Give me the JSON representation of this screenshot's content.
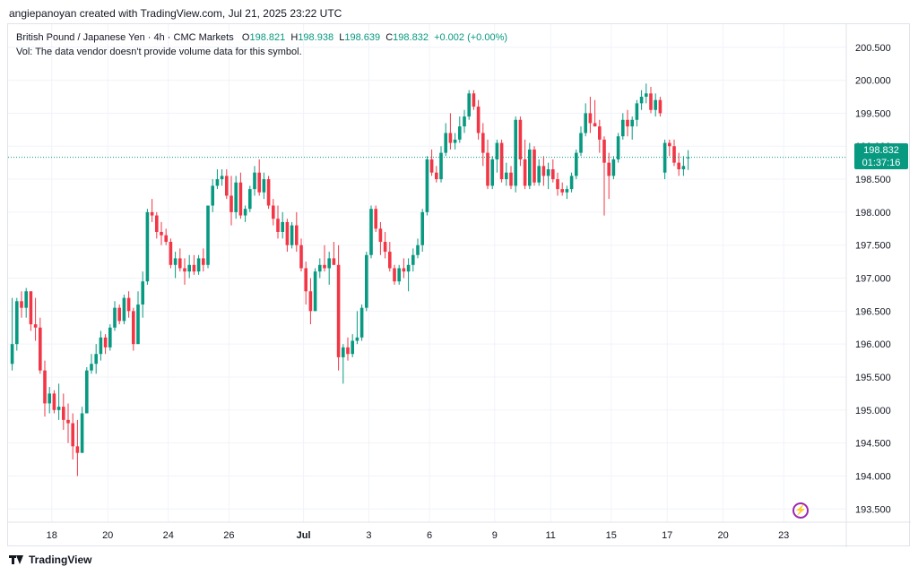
{
  "header": {
    "attribution": "angiepanoyan created with TradingView.com, Jul 21, 2025 23:22 UTC"
  },
  "legend": {
    "symbol": "British Pound / Japanese Yen · 4h · CMC Markets",
    "open_label": "O",
    "open": "198.821",
    "high_label": "H",
    "high": "198.938",
    "low_label": "L",
    "low": "198.639",
    "close_label": "C",
    "close": "198.832",
    "change": "+0.002 (+0.00%)",
    "volume_note": "Vol: The data vendor doesn't provide volume data for this symbol."
  },
  "price_tag": {
    "price": "198.832",
    "countdown": "01:37:16"
  },
  "footer": {
    "brand": "TradingView"
  },
  "icons": {
    "alert": "lightning-bolt-icon",
    "logo": "tradingview-logo-icon"
  },
  "colors": {
    "up": "#089981",
    "down": "#f23645",
    "last_price_line": "#089981",
    "alert": "#9c27b0"
  },
  "chart_data": {
    "type": "candlestick",
    "y_axis_labels": [
      "200.500",
      "200.000",
      "199.500",
      "199.000",
      "198.500",
      "198.000",
      "197.500",
      "197.000",
      "196.500",
      "196.000",
      "195.500",
      "195.000",
      "194.500",
      "194.000",
      "193.500"
    ],
    "ylim": [
      193.3,
      200.85
    ],
    "x_axis_labels": [
      "18",
      "20",
      "24",
      "26",
      "Jul",
      "3",
      "6",
      "9",
      "11",
      "15",
      "17",
      "20",
      "23"
    ],
    "x_label_slots": [
      9,
      21,
      34,
      47,
      63,
      77,
      90,
      104,
      116,
      129,
      141,
      153,
      166
    ],
    "last_price": 198.832,
    "grid": true,
    "candles": [
      {
        "o": 195.7,
        "h": 196.7,
        "l": 195.6,
        "c": 196.0
      },
      {
        "o": 196.0,
        "h": 196.7,
        "l": 195.9,
        "c": 196.65
      },
      {
        "o": 196.65,
        "h": 196.8,
        "l": 196.4,
        "c": 196.55
      },
      {
        "o": 196.55,
        "h": 196.85,
        "l": 196.4,
        "c": 196.8
      },
      {
        "o": 196.8,
        "h": 196.8,
        "l": 196.2,
        "c": 196.3
      },
      {
        "o": 196.3,
        "h": 196.7,
        "l": 196.05,
        "c": 196.25
      },
      {
        "o": 196.25,
        "h": 196.4,
        "l": 195.55,
        "c": 195.6
      },
      {
        "o": 195.6,
        "h": 195.75,
        "l": 194.9,
        "c": 195.1
      },
      {
        "o": 195.1,
        "h": 195.35,
        "l": 194.95,
        "c": 195.25
      },
      {
        "o": 195.25,
        "h": 195.3,
        "l": 194.95,
        "c": 195.0
      },
      {
        "o": 195.0,
        "h": 195.4,
        "l": 194.85,
        "c": 195.05
      },
      {
        "o": 195.05,
        "h": 195.25,
        "l": 194.7,
        "c": 194.85
      },
      {
        "o": 194.85,
        "h": 195.1,
        "l": 194.5,
        "c": 194.8
      },
      {
        "o": 194.8,
        "h": 194.95,
        "l": 194.25,
        "c": 194.45
      },
      {
        "o": 194.45,
        "h": 194.85,
        "l": 194.0,
        "c": 194.35
      },
      {
        "o": 194.35,
        "h": 195.05,
        "l": 194.35,
        "c": 194.95
      },
      {
        "o": 194.95,
        "h": 195.65,
        "l": 194.95,
        "c": 195.6
      },
      {
        "o": 195.6,
        "h": 195.85,
        "l": 195.55,
        "c": 195.7
      },
      {
        "o": 195.7,
        "h": 196.0,
        "l": 195.55,
        "c": 195.85
      },
      {
        "o": 195.85,
        "h": 196.2,
        "l": 195.75,
        "c": 196.1
      },
      {
        "o": 196.1,
        "h": 196.15,
        "l": 195.85,
        "c": 195.95
      },
      {
        "o": 195.95,
        "h": 196.3,
        "l": 195.9,
        "c": 196.25
      },
      {
        "o": 196.25,
        "h": 196.65,
        "l": 196.2,
        "c": 196.55
      },
      {
        "o": 196.55,
        "h": 196.6,
        "l": 196.3,
        "c": 196.35
      },
      {
        "o": 196.35,
        "h": 196.75,
        "l": 196.3,
        "c": 196.7
      },
      {
        "o": 196.7,
        "h": 196.8,
        "l": 196.4,
        "c": 196.5
      },
      {
        "o": 196.5,
        "h": 196.55,
        "l": 195.9,
        "c": 196.0
      },
      {
        "o": 196.0,
        "h": 196.8,
        "l": 196.0,
        "c": 196.6
      },
      {
        "o": 196.6,
        "h": 197.1,
        "l": 196.4,
        "c": 196.95
      },
      {
        "o": 196.95,
        "h": 198.05,
        "l": 196.9,
        "c": 198.0
      },
      {
        "o": 198.0,
        "h": 198.2,
        "l": 197.85,
        "c": 197.95
      },
      {
        "o": 197.95,
        "h": 198.0,
        "l": 197.6,
        "c": 197.7
      },
      {
        "o": 197.7,
        "h": 197.85,
        "l": 197.5,
        "c": 197.65
      },
      {
        "o": 197.65,
        "h": 197.75,
        "l": 197.5,
        "c": 197.55
      },
      {
        "o": 197.55,
        "h": 197.6,
        "l": 197.15,
        "c": 197.2
      },
      {
        "o": 197.2,
        "h": 197.4,
        "l": 197.0,
        "c": 197.3
      },
      {
        "o": 197.3,
        "h": 197.45,
        "l": 197.1,
        "c": 197.15
      },
      {
        "o": 197.15,
        "h": 197.3,
        "l": 196.9,
        "c": 197.1
      },
      {
        "o": 197.1,
        "h": 197.35,
        "l": 197.0,
        "c": 197.2
      },
      {
        "o": 197.2,
        "h": 197.35,
        "l": 197.05,
        "c": 197.1
      },
      {
        "o": 197.1,
        "h": 197.35,
        "l": 197.05,
        "c": 197.3
      },
      {
        "o": 197.3,
        "h": 197.45,
        "l": 197.1,
        "c": 197.2
      },
      {
        "o": 197.2,
        "h": 198.1,
        "l": 197.15,
        "c": 198.1
      },
      {
        "o": 198.1,
        "h": 198.5,
        "l": 198.0,
        "c": 198.4
      },
      {
        "o": 198.4,
        "h": 198.65,
        "l": 198.35,
        "c": 198.5
      },
      {
        "o": 198.5,
        "h": 198.65,
        "l": 198.4,
        "c": 198.55
      },
      {
        "o": 198.55,
        "h": 198.65,
        "l": 198.2,
        "c": 198.25
      },
      {
        "o": 198.25,
        "h": 198.55,
        "l": 197.8,
        "c": 198.0
      },
      {
        "o": 198.0,
        "h": 198.55,
        "l": 197.9,
        "c": 198.45
      },
      {
        "o": 198.45,
        "h": 198.6,
        "l": 197.9,
        "c": 197.95
      },
      {
        "o": 197.95,
        "h": 198.1,
        "l": 197.85,
        "c": 198.05
      },
      {
        "o": 198.05,
        "h": 198.4,
        "l": 198.0,
        "c": 198.35
      },
      {
        "o": 198.35,
        "h": 198.7,
        "l": 198.25,
        "c": 198.6
      },
      {
        "o": 198.6,
        "h": 198.8,
        "l": 198.25,
        "c": 198.3
      },
      {
        "o": 198.3,
        "h": 198.6,
        "l": 198.2,
        "c": 198.5
      },
      {
        "o": 198.5,
        "h": 198.55,
        "l": 198.05,
        "c": 198.1
      },
      {
        "o": 198.1,
        "h": 198.2,
        "l": 197.8,
        "c": 197.9
      },
      {
        "o": 197.9,
        "h": 198.1,
        "l": 197.6,
        "c": 197.7
      },
      {
        "o": 197.7,
        "h": 198.0,
        "l": 197.6,
        "c": 197.85
      },
      {
        "o": 197.85,
        "h": 197.9,
        "l": 197.4,
        "c": 197.5
      },
      {
        "o": 197.5,
        "h": 197.85,
        "l": 197.45,
        "c": 197.8
      },
      {
        "o": 197.8,
        "h": 198.0,
        "l": 197.4,
        "c": 197.5
      },
      {
        "o": 197.5,
        "h": 197.6,
        "l": 197.1,
        "c": 197.15
      },
      {
        "o": 197.15,
        "h": 197.25,
        "l": 196.6,
        "c": 196.8
      },
      {
        "o": 196.8,
        "h": 197.0,
        "l": 196.3,
        "c": 196.5
      },
      {
        "o": 196.5,
        "h": 197.15,
        "l": 196.5,
        "c": 197.1
      },
      {
        "o": 197.1,
        "h": 197.3,
        "l": 197.0,
        "c": 197.2
      },
      {
        "o": 197.2,
        "h": 197.5,
        "l": 197.1,
        "c": 197.15
      },
      {
        "o": 197.15,
        "h": 197.4,
        "l": 196.9,
        "c": 197.3
      },
      {
        "o": 197.3,
        "h": 197.55,
        "l": 197.2,
        "c": 197.2
      },
      {
        "o": 197.2,
        "h": 197.5,
        "l": 195.6,
        "c": 195.8
      },
      {
        "o": 195.8,
        "h": 196.0,
        "l": 195.4,
        "c": 195.95
      },
      {
        "o": 195.95,
        "h": 196.1,
        "l": 195.75,
        "c": 195.85
      },
      {
        "o": 195.85,
        "h": 196.15,
        "l": 195.8,
        "c": 196.05
      },
      {
        "o": 196.05,
        "h": 196.5,
        "l": 196.0,
        "c": 196.1
      },
      {
        "o": 196.1,
        "h": 196.6,
        "l": 196.05,
        "c": 196.55
      },
      {
        "o": 196.55,
        "h": 197.4,
        "l": 196.5,
        "c": 197.35
      },
      {
        "o": 197.35,
        "h": 198.1,
        "l": 197.3,
        "c": 198.05
      },
      {
        "o": 198.05,
        "h": 198.1,
        "l": 197.7,
        "c": 197.75
      },
      {
        "o": 197.75,
        "h": 197.85,
        "l": 197.35,
        "c": 197.55
      },
      {
        "o": 197.55,
        "h": 197.7,
        "l": 197.3,
        "c": 197.4
      },
      {
        "o": 197.4,
        "h": 197.55,
        "l": 197.1,
        "c": 197.15
      },
      {
        "o": 197.15,
        "h": 197.2,
        "l": 196.9,
        "c": 196.95
      },
      {
        "o": 196.95,
        "h": 197.2,
        "l": 196.9,
        "c": 197.15
      },
      {
        "o": 197.15,
        "h": 197.3,
        "l": 197.0,
        "c": 197.1
      },
      {
        "o": 197.1,
        "h": 197.3,
        "l": 196.8,
        "c": 197.2
      },
      {
        "o": 197.2,
        "h": 197.45,
        "l": 197.1,
        "c": 197.35
      },
      {
        "o": 197.35,
        "h": 197.6,
        "l": 197.3,
        "c": 197.5
      },
      {
        "o": 197.5,
        "h": 198.05,
        "l": 197.4,
        "c": 198.0
      },
      {
        "o": 198.0,
        "h": 198.85,
        "l": 197.95,
        "c": 198.8
      },
      {
        "o": 198.8,
        "h": 198.95,
        "l": 198.55,
        "c": 198.6
      },
      {
        "o": 198.6,
        "h": 198.7,
        "l": 198.45,
        "c": 198.5
      },
      {
        "o": 198.5,
        "h": 199.0,
        "l": 198.45,
        "c": 198.9
      },
      {
        "o": 198.9,
        "h": 199.35,
        "l": 198.85,
        "c": 199.2
      },
      {
        "o": 199.2,
        "h": 199.5,
        "l": 198.95,
        "c": 199.05
      },
      {
        "o": 199.05,
        "h": 199.2,
        "l": 198.95,
        "c": 199.1
      },
      {
        "o": 199.1,
        "h": 199.45,
        "l": 199.05,
        "c": 199.3
      },
      {
        "o": 199.3,
        "h": 199.55,
        "l": 199.2,
        "c": 199.45
      },
      {
        "o": 199.45,
        "h": 199.85,
        "l": 199.4,
        "c": 199.8
      },
      {
        "o": 199.8,
        "h": 199.85,
        "l": 199.55,
        "c": 199.6
      },
      {
        "o": 199.6,
        "h": 199.7,
        "l": 199.1,
        "c": 199.2
      },
      {
        "o": 199.2,
        "h": 199.35,
        "l": 198.7,
        "c": 198.9
      },
      {
        "o": 198.9,
        "h": 199.1,
        "l": 198.35,
        "c": 198.4
      },
      {
        "o": 198.4,
        "h": 198.85,
        "l": 198.35,
        "c": 198.8
      },
      {
        "o": 198.8,
        "h": 199.1,
        "l": 198.6,
        "c": 199.05
      },
      {
        "o": 199.05,
        "h": 199.1,
        "l": 198.45,
        "c": 198.5
      },
      {
        "o": 198.5,
        "h": 198.75,
        "l": 198.4,
        "c": 198.6
      },
      {
        "o": 198.6,
        "h": 198.7,
        "l": 198.35,
        "c": 198.4
      },
      {
        "o": 198.4,
        "h": 199.45,
        "l": 198.3,
        "c": 199.4
      },
      {
        "o": 199.4,
        "h": 199.45,
        "l": 198.7,
        "c": 198.8
      },
      {
        "o": 198.8,
        "h": 199.1,
        "l": 198.35,
        "c": 198.4
      },
      {
        "o": 198.4,
        "h": 199.05,
        "l": 198.35,
        "c": 198.95
      },
      {
        "o": 198.95,
        "h": 199.0,
        "l": 198.4,
        "c": 198.45
      },
      {
        "o": 198.45,
        "h": 198.8,
        "l": 198.4,
        "c": 198.7
      },
      {
        "o": 198.7,
        "h": 198.85,
        "l": 198.4,
        "c": 198.55
      },
      {
        "o": 198.55,
        "h": 198.75,
        "l": 198.35,
        "c": 198.65
      },
      {
        "o": 198.65,
        "h": 198.8,
        "l": 198.45,
        "c": 198.5
      },
      {
        "o": 198.5,
        "h": 198.6,
        "l": 198.25,
        "c": 198.35
      },
      {
        "o": 198.35,
        "h": 198.45,
        "l": 198.25,
        "c": 198.3
      },
      {
        "o": 198.3,
        "h": 198.4,
        "l": 198.2,
        "c": 198.35
      },
      {
        "o": 198.35,
        "h": 198.6,
        "l": 198.3,
        "c": 198.55
      },
      {
        "o": 198.55,
        "h": 198.95,
        "l": 198.5,
        "c": 198.9
      },
      {
        "o": 198.9,
        "h": 199.3,
        "l": 198.85,
        "c": 199.2
      },
      {
        "o": 199.2,
        "h": 199.65,
        "l": 199.15,
        "c": 199.5
      },
      {
        "o": 199.5,
        "h": 199.75,
        "l": 199.2,
        "c": 199.35
      },
      {
        "o": 199.35,
        "h": 199.7,
        "l": 199.3,
        "c": 199.3
      },
      {
        "o": 199.3,
        "h": 199.4,
        "l": 198.9,
        "c": 199.1
      },
      {
        "o": 199.1,
        "h": 199.15,
        "l": 197.95,
        "c": 198.75
      },
      {
        "o": 198.75,
        "h": 198.9,
        "l": 198.2,
        "c": 198.55
      },
      {
        "o": 198.55,
        "h": 198.85,
        "l": 198.5,
        "c": 198.8
      },
      {
        "o": 198.8,
        "h": 199.2,
        "l": 198.75,
        "c": 199.15
      },
      {
        "o": 199.15,
        "h": 199.5,
        "l": 199.1,
        "c": 199.4
      },
      {
        "o": 199.4,
        "h": 199.55,
        "l": 199.15,
        "c": 199.3
      },
      {
        "o": 199.3,
        "h": 199.45,
        "l": 199.1,
        "c": 199.4
      },
      {
        "o": 199.4,
        "h": 199.7,
        "l": 199.3,
        "c": 199.65
      },
      {
        "o": 199.65,
        "h": 199.85,
        "l": 199.55,
        "c": 199.75
      },
      {
        "o": 199.75,
        "h": 199.95,
        "l": 199.65,
        "c": 199.8
      },
      {
        "o": 199.8,
        "h": 199.9,
        "l": 199.5,
        "c": 199.55
      },
      {
        "o": 199.55,
        "h": 199.8,
        "l": 199.45,
        "c": 199.7
      },
      {
        "o": 199.7,
        "h": 199.75,
        "l": 199.45,
        "c": 199.5
      },
      {
        "o": 198.6,
        "h": 199.1,
        "l": 198.5,
        "c": 199.05
      },
      {
        "o": 199.05,
        "h": 199.1,
        "l": 198.85,
        "c": 199.0
      },
      {
        "o": 199.0,
        "h": 199.1,
        "l": 198.7,
        "c": 198.75
      },
      {
        "o": 198.75,
        "h": 198.9,
        "l": 198.55,
        "c": 198.65
      },
      {
        "o": 198.65,
        "h": 198.85,
        "l": 198.55,
        "c": 198.7
      },
      {
        "o": 198.82,
        "h": 198.94,
        "l": 198.64,
        "c": 198.83
      }
    ]
  }
}
